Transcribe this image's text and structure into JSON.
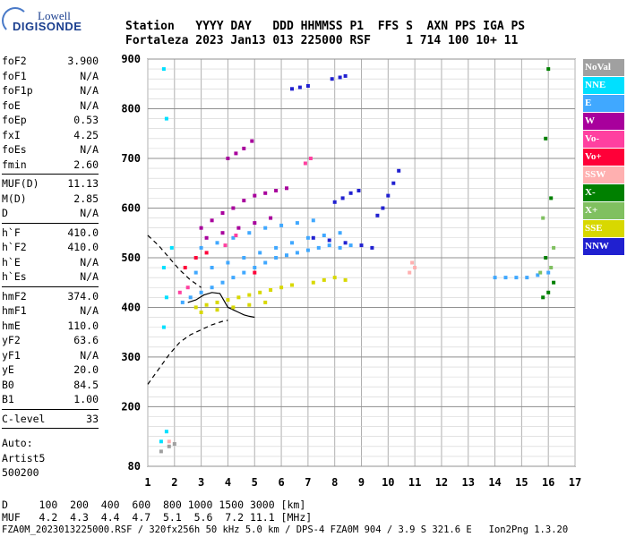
{
  "logo": {
    "line1": "Lowell",
    "line2": "DIGISONDE"
  },
  "header": {
    "line1": "Station   YYYY DAY   DDD HHMMSS P1  FFS S  AXN PPS IGA PS",
    "line2": "Fortaleza 2023 Jan13 013 225000 RSF     1 714 100 10+ 11"
  },
  "params": {
    "group1": [
      {
        "k": "foF2",
        "v": "3.900"
      },
      {
        "k": "foF1",
        "v": "N/A"
      },
      {
        "k": "foF1p",
        "v": "N/A"
      },
      {
        "k": "foE",
        "v": "N/A"
      },
      {
        "k": "foEp",
        "v": "0.53"
      },
      {
        "k": "fxI",
        "v": "4.25"
      },
      {
        "k": "foEs",
        "v": "N/A"
      },
      {
        "k": "fmin",
        "v": "2.60"
      }
    ],
    "group2": [
      {
        "k": "MUF(D)",
        "v": "11.13"
      },
      {
        "k": "M(D)",
        "v": "2.85"
      },
      {
        "k": "D",
        "v": "N/A"
      }
    ],
    "group3": [
      {
        "k": "h`F",
        "v": "410.0"
      },
      {
        "k": "h`F2",
        "v": "410.0"
      },
      {
        "k": "h`E",
        "v": "N/A"
      },
      {
        "k": "h`Es",
        "v": "N/A"
      }
    ],
    "group4": [
      {
        "k": "hmF2",
        "v": "374.0"
      },
      {
        "k": "hmF1",
        "v": "N/A"
      },
      {
        "k": "hmE",
        "v": "110.0"
      },
      {
        "k": "yF2",
        "v": "63.6"
      },
      {
        "k": "yF1",
        "v": "N/A"
      },
      {
        "k": "yE",
        "v": "20.0"
      },
      {
        "k": "B0",
        "v": "84.5"
      },
      {
        "k": "B1",
        "v": "1.00"
      }
    ],
    "group5": [
      {
        "k": "C-level",
        "v": "33"
      }
    ],
    "auto": [
      "Auto:",
      "Artist5",
      "500200"
    ]
  },
  "legend": [
    {
      "label": "NoVal",
      "color": "#a0a0a0"
    },
    {
      "label": "NNE",
      "color": "#00e0ff"
    },
    {
      "label": "E",
      "color": "#40a8ff"
    },
    {
      "label": "W",
      "color": "#a8009c"
    },
    {
      "label": "Vo-",
      "color": "#ff40a0"
    },
    {
      "label": "Vo+",
      "color": "#ff0038"
    },
    {
      "label": "SSW",
      "color": "#ffb0b0"
    },
    {
      "label": "X-",
      "color": "#008000"
    },
    {
      "label": "X+",
      "color": "#80c060"
    },
    {
      "label": "SSE",
      "color": "#d8d800"
    },
    {
      "label": "NNW",
      "color": "#2020d0"
    }
  ],
  "bottom": {
    "line1": "D     100  200  400  600  800 1000 1500 3000 [km]",
    "line2": "MUF   4.2  4.3  4.4  4.7  5.1  5.6  7.2 11.1 [MHz]"
  },
  "footer": "FZA0M_2023013225000.RSF / 320fx256h 50 kHz 5.0 km / DPS-4 FZA0M 904 / 3.9 S 321.6 E   Ion2Png 1.3.20",
  "chart_data": {
    "type": "scatter",
    "title": "",
    "xlabel": "",
    "ylabel": "",
    "xlim": [
      1,
      17
    ],
    "ylim": [
      80,
      900
    ],
    "x_ticks": [
      "1",
      "2",
      "3",
      "4",
      "5",
      "6",
      "7",
      "8",
      "9",
      "10",
      "11",
      "12",
      "13",
      "14",
      "15",
      "16",
      "17"
    ],
    "y_ticks": [
      "80",
      "200",
      "300",
      "400",
      "500",
      "600",
      "700",
      "800",
      "900"
    ],
    "grid": true,
    "legend_position": "right",
    "series": [
      {
        "name": "E",
        "color": "#40a8ff",
        "points": [
          [
            2.3,
            410
          ],
          [
            2.6,
            420
          ],
          [
            3.0,
            430
          ],
          [
            3.4,
            440
          ],
          [
            3.8,
            450
          ],
          [
            4.2,
            460
          ],
          [
            4.6,
            470
          ],
          [
            5.0,
            480
          ],
          [
            5.4,
            490
          ],
          [
            5.8,
            500
          ],
          [
            6.2,
            505
          ],
          [
            6.6,
            510
          ],
          [
            7.0,
            515
          ],
          [
            7.4,
            520
          ],
          [
            7.8,
            525
          ],
          [
            8.2,
            520
          ],
          [
            8.6,
            525
          ],
          [
            2.8,
            470
          ],
          [
            3.4,
            480
          ],
          [
            4.0,
            490
          ],
          [
            4.6,
            500
          ],
          [
            5.2,
            510
          ],
          [
            5.8,
            520
          ],
          [
            6.4,
            530
          ],
          [
            7.0,
            540
          ],
          [
            7.6,
            545
          ],
          [
            8.2,
            550
          ],
          [
            3.0,
            520
          ],
          [
            3.6,
            530
          ],
          [
            4.2,
            540
          ],
          [
            4.8,
            550
          ],
          [
            5.4,
            560
          ],
          [
            6.0,
            565
          ],
          [
            6.6,
            570
          ],
          [
            7.2,
            575
          ],
          [
            14.0,
            460
          ],
          [
            14.4,
            460
          ],
          [
            14.8,
            460
          ],
          [
            15.2,
            460
          ],
          [
            15.6,
            465
          ],
          [
            16.0,
            470
          ]
        ]
      },
      {
        "name": "W",
        "color": "#a8009c",
        "points": [
          [
            3.0,
            560
          ],
          [
            3.4,
            575
          ],
          [
            3.8,
            590
          ],
          [
            4.2,
            600
          ],
          [
            4.6,
            615
          ],
          [
            5.0,
            625
          ],
          [
            5.4,
            630
          ],
          [
            5.8,
            635
          ],
          [
            6.2,
            640
          ],
          [
            3.2,
            540
          ],
          [
            3.8,
            550
          ],
          [
            4.4,
            560
          ],
          [
            5.0,
            570
          ],
          [
            5.6,
            580
          ],
          [
            4.0,
            700
          ],
          [
            4.3,
            710
          ],
          [
            4.6,
            720
          ],
          [
            4.9,
            735
          ]
        ]
      },
      {
        "name": "SSE",
        "color": "#d8d800",
        "points": [
          [
            2.8,
            400
          ],
          [
            3.2,
            405
          ],
          [
            3.6,
            410
          ],
          [
            4.0,
            415
          ],
          [
            4.4,
            420
          ],
          [
            4.8,
            425
          ],
          [
            5.2,
            430
          ],
          [
            5.6,
            435
          ],
          [
            6.0,
            440
          ],
          [
            6.4,
            445
          ],
          [
            7.2,
            450
          ],
          [
            7.6,
            455
          ],
          [
            8.0,
            460
          ],
          [
            8.4,
            455
          ],
          [
            3.0,
            390
          ],
          [
            3.6,
            395
          ],
          [
            4.2,
            400
          ],
          [
            4.8,
            405
          ],
          [
            5.4,
            410
          ]
        ]
      },
      {
        "name": "NNW",
        "color": "#2020d0",
        "points": [
          [
            6.4,
            840
          ],
          [
            6.7,
            843
          ],
          [
            7.0,
            846
          ],
          [
            7.9,
            860
          ],
          [
            8.2,
            863
          ],
          [
            8.4,
            866
          ],
          [
            8.0,
            612
          ],
          [
            8.3,
            620
          ],
          [
            8.6,
            630
          ],
          [
            8.9,
            635
          ],
          [
            9.6,
            585
          ],
          [
            9.8,
            600
          ],
          [
            10.0,
            625
          ],
          [
            10.2,
            650
          ],
          [
            10.4,
            675
          ],
          [
            7.2,
            540
          ],
          [
            7.8,
            535
          ],
          [
            8.4,
            530
          ],
          [
            9.0,
            525
          ],
          [
            9.4,
            520
          ]
        ]
      },
      {
        "name": "NNE",
        "color": "#00e0ff",
        "points": [
          [
            1.5,
            130
          ],
          [
            1.7,
            150
          ],
          [
            1.6,
            360
          ],
          [
            1.7,
            420
          ],
          [
            1.6,
            480
          ],
          [
            1.9,
            520
          ],
          [
            1.6,
            880
          ],
          [
            1.7,
            780
          ]
        ]
      },
      {
        "name": "Vo-",
        "color": "#ff40a0",
        "points": [
          [
            2.2,
            430
          ],
          [
            2.5,
            440
          ],
          [
            3.9,
            525
          ],
          [
            4.3,
            545
          ],
          [
            6.9,
            690
          ],
          [
            7.1,
            700
          ]
        ]
      },
      {
        "name": "Vo+",
        "color": "#ff0038",
        "points": [
          [
            2.4,
            480
          ],
          [
            2.8,
            500
          ],
          [
            3.2,
            510
          ],
          [
            5.0,
            470
          ]
        ]
      },
      {
        "name": "X-",
        "color": "#008000",
        "points": [
          [
            15.8,
            420
          ],
          [
            16.0,
            430
          ],
          [
            16.2,
            450
          ],
          [
            15.9,
            500
          ],
          [
            16.1,
            620
          ],
          [
            15.9,
            740
          ],
          [
            16.0,
            880
          ]
        ]
      },
      {
        "name": "X+",
        "color": "#80c060",
        "points": [
          [
            15.7,
            470
          ],
          [
            16.1,
            480
          ],
          [
            16.2,
            520
          ],
          [
            15.8,
            580
          ]
        ]
      },
      {
        "name": "SSW",
        "color": "#ffb0b0",
        "points": [
          [
            10.8,
            470
          ],
          [
            10.9,
            490
          ],
          [
            11.0,
            480
          ],
          [
            1.8,
            130
          ]
        ]
      },
      {
        "name": "NoVal",
        "color": "#a0a0a0",
        "points": [
          [
            1.5,
            110
          ],
          [
            1.8,
            120
          ],
          [
            2.0,
            125
          ]
        ]
      }
    ],
    "lines": [
      {
        "name": "profile-solid",
        "style": "solid",
        "points": [
          [
            2.5,
            410
          ],
          [
            2.8,
            415
          ],
          [
            3.1,
            425
          ],
          [
            3.4,
            430
          ],
          [
            3.7,
            428
          ],
          [
            4.0,
            400
          ],
          [
            4.2,
            395
          ],
          [
            4.4,
            390
          ],
          [
            4.6,
            385
          ],
          [
            4.8,
            382
          ],
          [
            5.0,
            380
          ]
        ]
      },
      {
        "name": "profile-dashed",
        "style": "dashed",
        "points": [
          [
            1.0,
            245
          ],
          [
            1.4,
            275
          ],
          [
            1.8,
            305
          ],
          [
            2.2,
            330
          ],
          [
            2.6,
            345
          ],
          [
            3.0,
            355
          ],
          [
            3.4,
            365
          ],
          [
            3.8,
            372
          ],
          [
            4.0,
            374
          ]
        ]
      },
      {
        "name": "trace-upper-dashed",
        "style": "dashed",
        "points": [
          [
            1.0,
            545
          ],
          [
            1.4,
            525
          ],
          [
            1.8,
            500
          ],
          [
            2.2,
            475
          ],
          [
            2.6,
            455
          ],
          [
            3.0,
            440
          ]
        ]
      }
    ]
  }
}
